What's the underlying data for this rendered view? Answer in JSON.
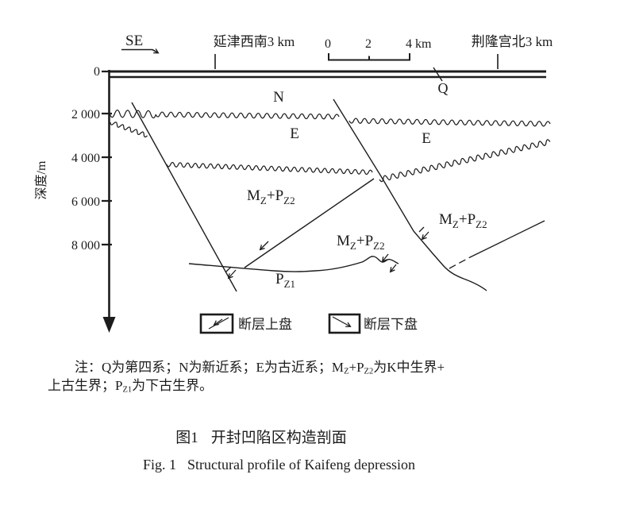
{
  "colors": {
    "ink": "#1c1c1c",
    "background": "#ffffff"
  },
  "header": {
    "direction": "SE",
    "left_location": "延津西南3 km",
    "right_location": "荆隆宫北3 km",
    "scale_bar": {
      "tick0": "0",
      "tick2": "2",
      "tick4": "4",
      "unit": "km"
    }
  },
  "axis": {
    "title": "深度/m",
    "ticks": [
      "0",
      "2 000",
      "4 000",
      "6 000",
      "8 000"
    ]
  },
  "strata_labels": {
    "quaternary": "Q",
    "neogene": "N",
    "paleogene_left": "E",
    "paleogene_right": "E",
    "mz_pz2": {
      "m": "M",
      "m_sub": "Z",
      "plus_p": "+P",
      "p_sub": "Z2"
    },
    "pz1": {
      "p": "P",
      "p_sub": "Z1"
    }
  },
  "legend": {
    "hanging_wall": "断层上盘",
    "foot_wall": "断层下盘"
  },
  "note": {
    "line1_a": "注：Q为第四系；N为新近系；E为古近系；M",
    "line1_sub1": "Z",
    "line1_b": "+P",
    "line1_sub2": "Z2",
    "line1_c": "为K中生界+",
    "line2_a": "上古生界；P",
    "line2_sub": "Z1",
    "line2_b": "为下古生界。"
  },
  "caption": {
    "zh_label": "图1",
    "zh_title": "开封凹陷区构造剖面",
    "en_label": "Fig. 1",
    "en_title": "Structural profile of Kaifeng depression"
  }
}
